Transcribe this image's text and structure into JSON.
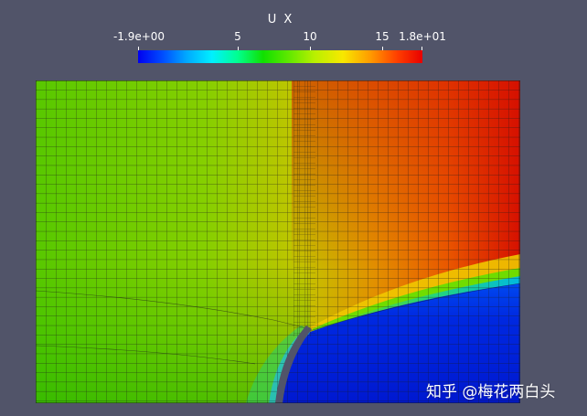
{
  "colorbar": {
    "title": "U X",
    "range": [
      -1.9,
      18
    ],
    "ticks": [
      {
        "value": -1.9,
        "label": "-1.9e+00"
      },
      {
        "value": 5,
        "label": "5"
      },
      {
        "value": 10,
        "label": "10"
      },
      {
        "value": 15,
        "label": "15"
      },
      {
        "value": 18,
        "label": "1.8e+01"
      }
    ],
    "colormap": [
      "#0000f0",
      "#00a8ff",
      "#00f0ff",
      "#10e000",
      "#b8f000",
      "#f8e800",
      "#ff9800",
      "#e80000"
    ]
  },
  "watermark": "知乎 @梅花两白头",
  "colors": {
    "background": "#515469",
    "grid_lines": "#1a1a1a",
    "obstacle": "#515469"
  }
}
